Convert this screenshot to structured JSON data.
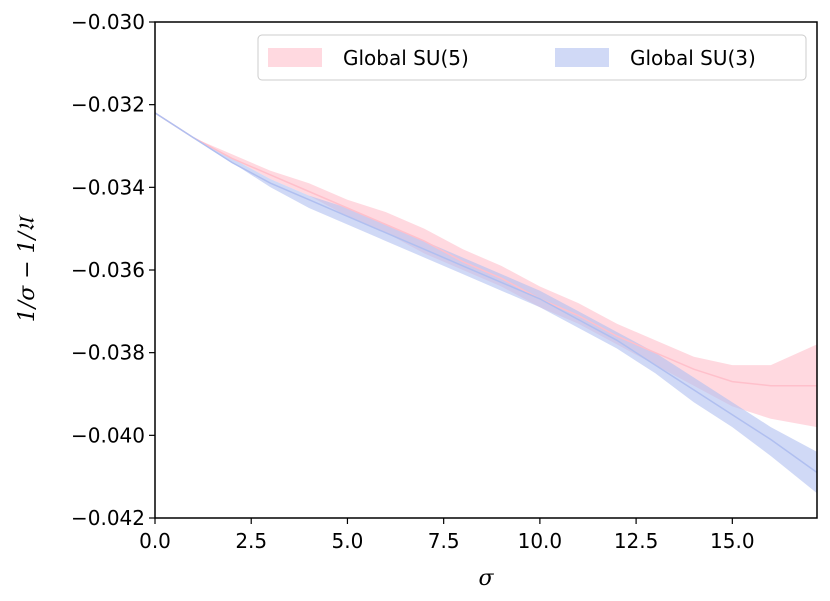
{
  "chart_data": {
    "type": "line",
    "xlabel": "σ",
    "ylabel": "1/σ − 1/𝔘",
    "xlim": [
      0,
      17.2
    ],
    "ylim": [
      -0.042,
      -0.03
    ],
    "xticks": [
      "0.0",
      "2.5",
      "5.0",
      "7.5",
      "10.0",
      "12.5",
      "15.0"
    ],
    "yticks": [
      "−0.042",
      "−0.040",
      "−0.038",
      "−0.036",
      "−0.034",
      "−0.032",
      "−0.030"
    ],
    "legend": "top-right",
    "grid": false,
    "series": [
      {
        "name": "Global SU(5)",
        "color": "#ffc0cb",
        "x": [
          0,
          1,
          2,
          3,
          4,
          5,
          6,
          7,
          8,
          9,
          10,
          11,
          12,
          13,
          14,
          15,
          16,
          17.2
        ],
        "y": [
          -0.0322,
          -0.0328,
          -0.0333,
          -0.0337,
          -0.0341,
          -0.0345,
          -0.0349,
          -0.0353,
          -0.0358,
          -0.0362,
          -0.0367,
          -0.0371,
          -0.0376,
          -0.038,
          -0.0384,
          -0.0387,
          -0.0388,
          -0.0388
        ],
        "y_low": [
          -0.0322,
          -0.0328,
          -0.0333,
          -0.0338,
          -0.0342,
          -0.0347,
          -0.0351,
          -0.0356,
          -0.036,
          -0.0364,
          -0.0369,
          -0.0373,
          -0.0378,
          -0.0383,
          -0.0388,
          -0.0393,
          -0.0396,
          -0.0398
        ],
        "y_high": [
          -0.0322,
          -0.0328,
          -0.0332,
          -0.0336,
          -0.0339,
          -0.0343,
          -0.0346,
          -0.035,
          -0.0355,
          -0.0359,
          -0.0364,
          -0.0368,
          -0.0373,
          -0.0377,
          -0.0381,
          -0.0383,
          -0.0383,
          -0.0378
        ]
      },
      {
        "name": "Global SU(3)",
        "color": "#b0bff0",
        "x": [
          0,
          1,
          2,
          3,
          4,
          5,
          6,
          7,
          8,
          9,
          10,
          11,
          12,
          13,
          14,
          15,
          16,
          17.2
        ],
        "y": [
          -0.0322,
          -0.0328,
          -0.0334,
          -0.0339,
          -0.0343,
          -0.0347,
          -0.0351,
          -0.0355,
          -0.0359,
          -0.0363,
          -0.0367,
          -0.0372,
          -0.0377,
          -0.0383,
          -0.0389,
          -0.0395,
          -0.0401,
          -0.0409
        ],
        "y_low": [
          -0.0322,
          -0.0328,
          -0.0334,
          -0.034,
          -0.0345,
          -0.0349,
          -0.0353,
          -0.0357,
          -0.0361,
          -0.0365,
          -0.0369,
          -0.0374,
          -0.0379,
          -0.0385,
          -0.0392,
          -0.0398,
          -0.0405,
          -0.0414
        ],
        "y_high": [
          -0.0322,
          -0.0328,
          -0.0333,
          -0.0338,
          -0.0342,
          -0.0345,
          -0.0349,
          -0.0353,
          -0.0357,
          -0.0361,
          -0.0365,
          -0.037,
          -0.0375,
          -0.038,
          -0.0386,
          -0.0392,
          -0.0398,
          -0.0404
        ]
      }
    ]
  }
}
